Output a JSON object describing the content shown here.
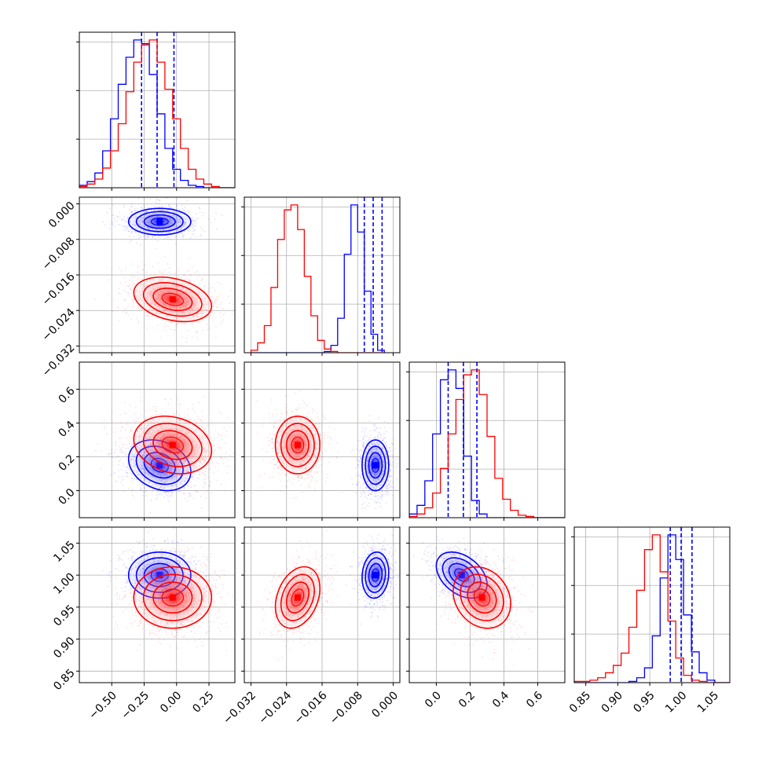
{
  "chart_data": {
    "type": "corner",
    "title": "",
    "grid": true,
    "params": [
      {
        "label": "",
        "range": [
          -0.75,
          0.45
        ],
        "ticks": [
          -0.5,
          -0.25,
          0.0,
          0.25
        ],
        "tick_labels": [
          "−0.50",
          "−0.25",
          "0.00",
          "0.25"
        ]
      },
      {
        "label": "",
        "range": [
          -0.0335,
          0.0015
        ],
        "ticks": [
          -0.032,
          -0.024,
          -0.016,
          -0.008,
          0.0
        ],
        "tick_labels": [
          "−0.032",
          "−0.024",
          "−0.016",
          "−0.008",
          "0.000"
        ]
      },
      {
        "label": "",
        "range": [
          -0.16,
          0.76
        ],
        "ticks": [
          0.0,
          0.2,
          0.4,
          0.6
        ],
        "tick_labels": [
          "0.0",
          "0.2",
          "0.4",
          "0.6"
        ]
      },
      {
        "label": "",
        "range": [
          0.832,
          1.075
        ],
        "ticks": [
          0.85,
          0.9,
          0.95,
          1.0,
          1.05
        ],
        "tick_labels": [
          "0.85",
          "0.90",
          "0.95",
          "1.00",
          "1.05"
        ]
      }
    ],
    "series": [
      {
        "name": "",
        "color": "#0000ff",
        "mean": [
          -0.13,
          -0.004,
          0.15,
          1.0
        ],
        "std": [
          0.12,
          0.0015,
          0.075,
          0.018
        ],
        "corr": {
          "0-2": -0.25,
          "1-3": 0.1,
          "2-3": -0.4
        },
        "quantiles": [
          [
            -0.27,
            -0.15,
            -0.02
          ],
          [
            -0.0065,
            -0.0045,
            -0.0025
          ],
          [
            0.07,
            0.16,
            0.24
          ],
          [
            0.982,
            0.999,
            1.016
          ]
        ],
        "hist": [
          {
            "start": -0.75,
            "step": 0.06,
            "counts": [
              0.2,
              0.5,
              1.2,
              3.0,
              5.6,
              8.4,
              10.6,
              12.0,
              11.7,
              9.2,
              6.0,
              3.2,
              1.5,
              0.6,
              0.2,
              0.1,
              0,
              0,
              0,
              0
            ]
          },
          {
            "start": -0.032,
            "step": 0.0015,
            "counts": [
              0,
              0,
              0,
              0,
              0,
              0,
              0,
              0,
              0,
              0,
              0,
              0.1,
              0.6,
              2.8,
              8.0,
              12.0,
              9.8,
              5.0,
              1.5,
              0.2
            ]
          },
          {
            "start": -0.16,
            "step": 0.046,
            "counts": [
              0.3,
              1.0,
              3.0,
              6.8,
              11.2,
              12.0,
              10.5,
              5.0,
              1.4,
              0.3,
              0,
              0,
              0,
              0,
              0,
              0,
              0,
              0,
              0,
              0
            ]
          },
          {
            "start": 0.832,
            "step": 0.0122,
            "counts": [
              0,
              0,
              0,
              0,
              0,
              0,
              0,
              0.1,
              0.4,
              1.2,
              3.8,
              8.5,
              12.0,
              10.0,
              5.5,
              2.5,
              0.8,
              0.2,
              0,
              0
            ]
          }
        ]
      },
      {
        "name": "",
        "color": "#ff0000",
        "mean": [
          -0.03,
          -0.0215,
          0.27,
          0.965
        ],
        "std": [
          0.15,
          0.0025,
          0.085,
          0.024
        ],
        "corr": {
          "0-1": -0.3,
          "0-2": -0.2,
          "1-3": 0.3,
          "2-3": -0.2
        },
        "quantiles": [],
        "hist": [
          {
            "start": -0.75,
            "step": 0.06,
            "counts": [
              0.1,
              0.3,
              0.7,
              1.6,
              3.0,
              5.2,
              7.8,
              10.2,
              11.6,
              12.0,
              10.2,
              8.0,
              5.6,
              3.2,
              1.5,
              0.7,
              0.3,
              0.1,
              0,
              0
            ]
          },
          {
            "start": -0.032,
            "step": 0.0015,
            "counts": [
              0.2,
              0.8,
              2.2,
              5.3,
              9.2,
              11.6,
              12.0,
              10.0,
              6.2,
              3.0,
              1.0,
              0.3,
              0.1,
              0,
              0,
              0,
              0,
              0,
              0,
              0
            ]
          },
          {
            "start": -0.16,
            "step": 0.046,
            "counts": [
              0.1,
              0.3,
              0.8,
              2.0,
              4.0,
              6.8,
              9.6,
              11.6,
              12.0,
              10.0,
              6.6,
              3.2,
              1.5,
              0.6,
              0.2,
              0.1,
              0,
              0,
              0,
              0
            ]
          },
          {
            "start": 0.832,
            "step": 0.0122,
            "counts": [
              0.1,
              0.1,
              0.2,
              0.4,
              0.8,
              1.4,
              2.4,
              4.5,
              7.5,
              10.8,
              12.0,
              9.0,
              5.0,
              2.0,
              0.6,
              0.2,
              0.1,
              0,
              0,
              0
            ]
          }
        ]
      }
    ]
  }
}
